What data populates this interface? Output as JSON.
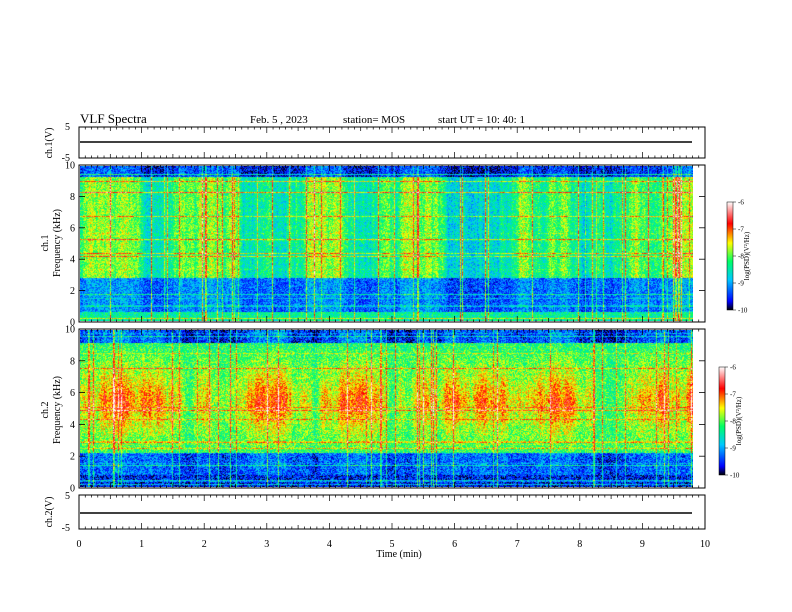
{
  "header": {
    "title": "VLF Spectra",
    "date": "Feb. 5 , 2023",
    "station": "station= MOS",
    "start": "start UT = 10: 40: 1"
  },
  "chart_data": [
    {
      "type": "line",
      "name": "ch1-waveform",
      "ylabel": "ch.1(V)",
      "ylim": [
        -5,
        5
      ],
      "ytick_labels": [
        "5",
        "-5"
      ],
      "xlim": [
        0,
        10
      ],
      "baseline_value": 0
    },
    {
      "type": "heatmap",
      "name": "ch1-spectrogram",
      "ylabel_line1": "ch.1",
      "ylabel_line2": "Frequency (kHz)",
      "ylim": [
        0,
        10
      ],
      "yticks": [
        0,
        2,
        4,
        6,
        8,
        10
      ],
      "ytick_labels": [
        "0",
        "2",
        "4",
        "6",
        "8",
        "10"
      ],
      "xlim": [
        0,
        10
      ],
      "data_end_min": 9.85,
      "colorbar": {
        "title": "log(PSD)(V²/Hz)",
        "range": [
          -10,
          -6
        ],
        "tick_labels": [
          "-6",
          "-7",
          "-8",
          "-9",
          "-10"
        ]
      }
    },
    {
      "type": "heatmap",
      "name": "ch2-spectrogram",
      "ylabel_line1": "ch.2",
      "ylabel_line2": "Frequency (kHz)",
      "ylim": [
        0,
        10
      ],
      "yticks": [
        0,
        2,
        4,
        6,
        8,
        10
      ],
      "ytick_labels": [
        "0",
        "2",
        "4",
        "6",
        "8",
        "10"
      ],
      "xlim": [
        0,
        10
      ],
      "data_end_min": 9.85,
      "colorbar": {
        "title": "log(PSD)(V²/Hz)",
        "range": [
          -10,
          -6
        ],
        "tick_labels": [
          "-6",
          "-7",
          "-8",
          "-9",
          "-10"
        ]
      }
    },
    {
      "type": "line",
      "name": "ch2-waveform",
      "ylabel": "ch.2(V)",
      "ylim": [
        -5,
        5
      ],
      "ytick_labels": [
        "5",
        "-5"
      ],
      "xlim": [
        0,
        10
      ],
      "baseline_value": 0
    }
  ],
  "xaxis": {
    "label": "Time (min)",
    "ticks": [
      0,
      1,
      2,
      3,
      4,
      5,
      6,
      7,
      8,
      9,
      10
    ],
    "tick_labels": [
      "0",
      "1",
      "2",
      "3",
      "4",
      "5",
      "6",
      "7",
      "8",
      "9",
      "10"
    ]
  },
  "colors": {
    "cmap": [
      "#000000",
      "#0000ff",
      "#00c8ff",
      "#00ff66",
      "#ffff00",
      "#ff0000",
      "#ffffff"
    ]
  }
}
